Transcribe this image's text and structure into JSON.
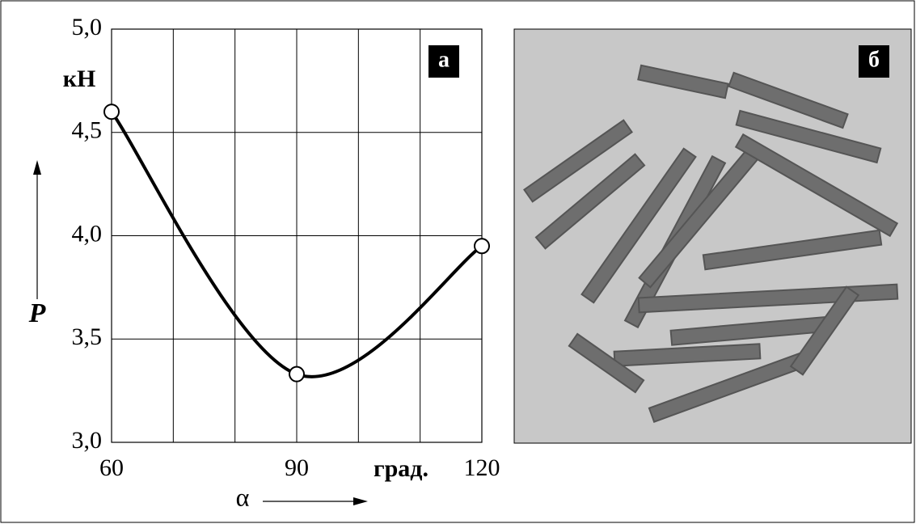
{
  "chart_data": {
    "type": "line",
    "x": [
      60,
      90,
      120
    ],
    "series": [
      {
        "color": "#000000",
        "values": [
          4.6,
          3.33,
          3.95
        ]
      }
    ],
    "xlim": [
      60,
      120
    ],
    "ylim": [
      3,
      5
    ],
    "xticks": [
      60,
      90,
      120
    ],
    "xgrid": [
      60,
      70,
      80,
      90,
      100,
      110,
      120
    ],
    "yticks": [
      {
        "value": 3,
        "label": "3,0"
      },
      {
        "value": 3.5,
        "label": "3,5"
      },
      {
        "value": 4,
        "label": "4,0"
      },
      {
        "value": 4.5,
        "label": "4,5"
      },
      {
        "value": 5,
        "label": "5,0"
      }
    ],
    "grid": true,
    "x_unit": "град.",
    "x_label": "α",
    "y_label": "P",
    "y_unit": "кН",
    "panel_label": "а"
  },
  "photo": {
    "panel_label": "б"
  }
}
